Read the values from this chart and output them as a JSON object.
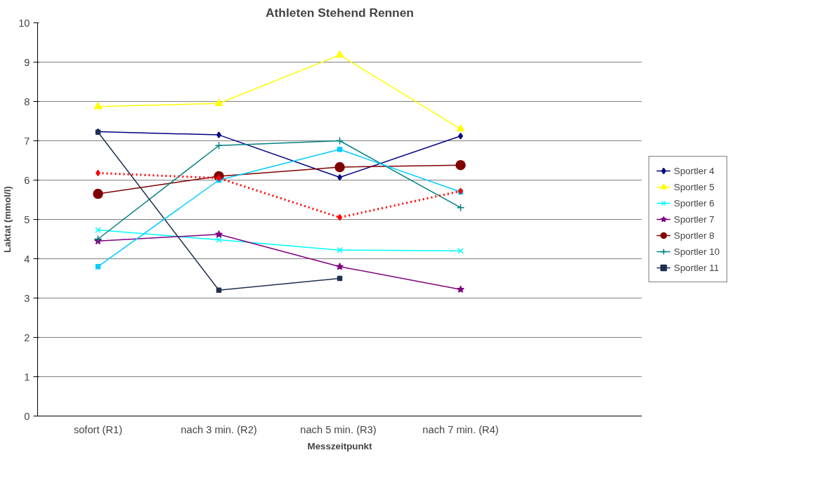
{
  "chart_data": {
    "type": "line",
    "title": "Athleten Stehend Rennen",
    "xlabel": "Messzeitpunkt",
    "ylabel": "Laktat (mmol/l)",
    "categories": [
      "sofort (R1)",
      "nach 3 min. (R2)",
      "nach  5 min. (R3)",
      "nach 7 min. (R4)",
      null
    ],
    "ylim": [
      0,
      10
    ],
    "yticks": [
      0,
      1,
      2,
      3,
      4,
      5,
      6,
      7,
      8,
      9,
      10
    ],
    "grid": "y",
    "legend": "right",
    "line_style": "solid",
    "series": [
      {
        "name": "Sportler 4",
        "color": "#000080",
        "marker": "diamond",
        "values": [
          7.23,
          7.15,
          6.07,
          7.12,
          null
        ]
      },
      {
        "name": "Sportler 5",
        "color": "#ffff00",
        "marker": "triangle",
        "values": [
          7.87,
          7.95,
          9.18,
          7.3,
          null
        ]
      },
      {
        "name": "Sportler 6",
        "color": "#00ffff",
        "marker": "x",
        "values": [
          4.73,
          4.48,
          4.22,
          4.2,
          null
        ]
      },
      {
        "name": "Sportler 7",
        "color": "#800080",
        "marker": "star",
        "values": [
          4.45,
          4.62,
          3.8,
          3.22,
          null
        ]
      },
      {
        "name": "Sportler 8",
        "color": "#800000",
        "marker": "circle",
        "values": [
          5.65,
          6.1,
          6.33,
          6.38,
          null
        ]
      },
      {
        "name": "Sportler 10",
        "color": "#008080",
        "marker": "cross",
        "values": [
          4.5,
          6.88,
          7.0,
          5.3,
          null
        ]
      },
      {
        "name": "Sportler 11",
        "color": "#1f3050",
        "marker": "square",
        "values": [
          7.22,
          3.2,
          3.5,
          null,
          null
        ]
      },
      {
        "color": "#00ccff",
        "marker": "square",
        "values": [
          3.8,
          6.0,
          6.78,
          5.7,
          null
        ]
      },
      {
        "color": "#ff0000",
        "marker": "diamond",
        "line_style": "dotted",
        "values": [
          6.18,
          6.05,
          5.05,
          5.72,
          null
        ]
      }
    ]
  }
}
